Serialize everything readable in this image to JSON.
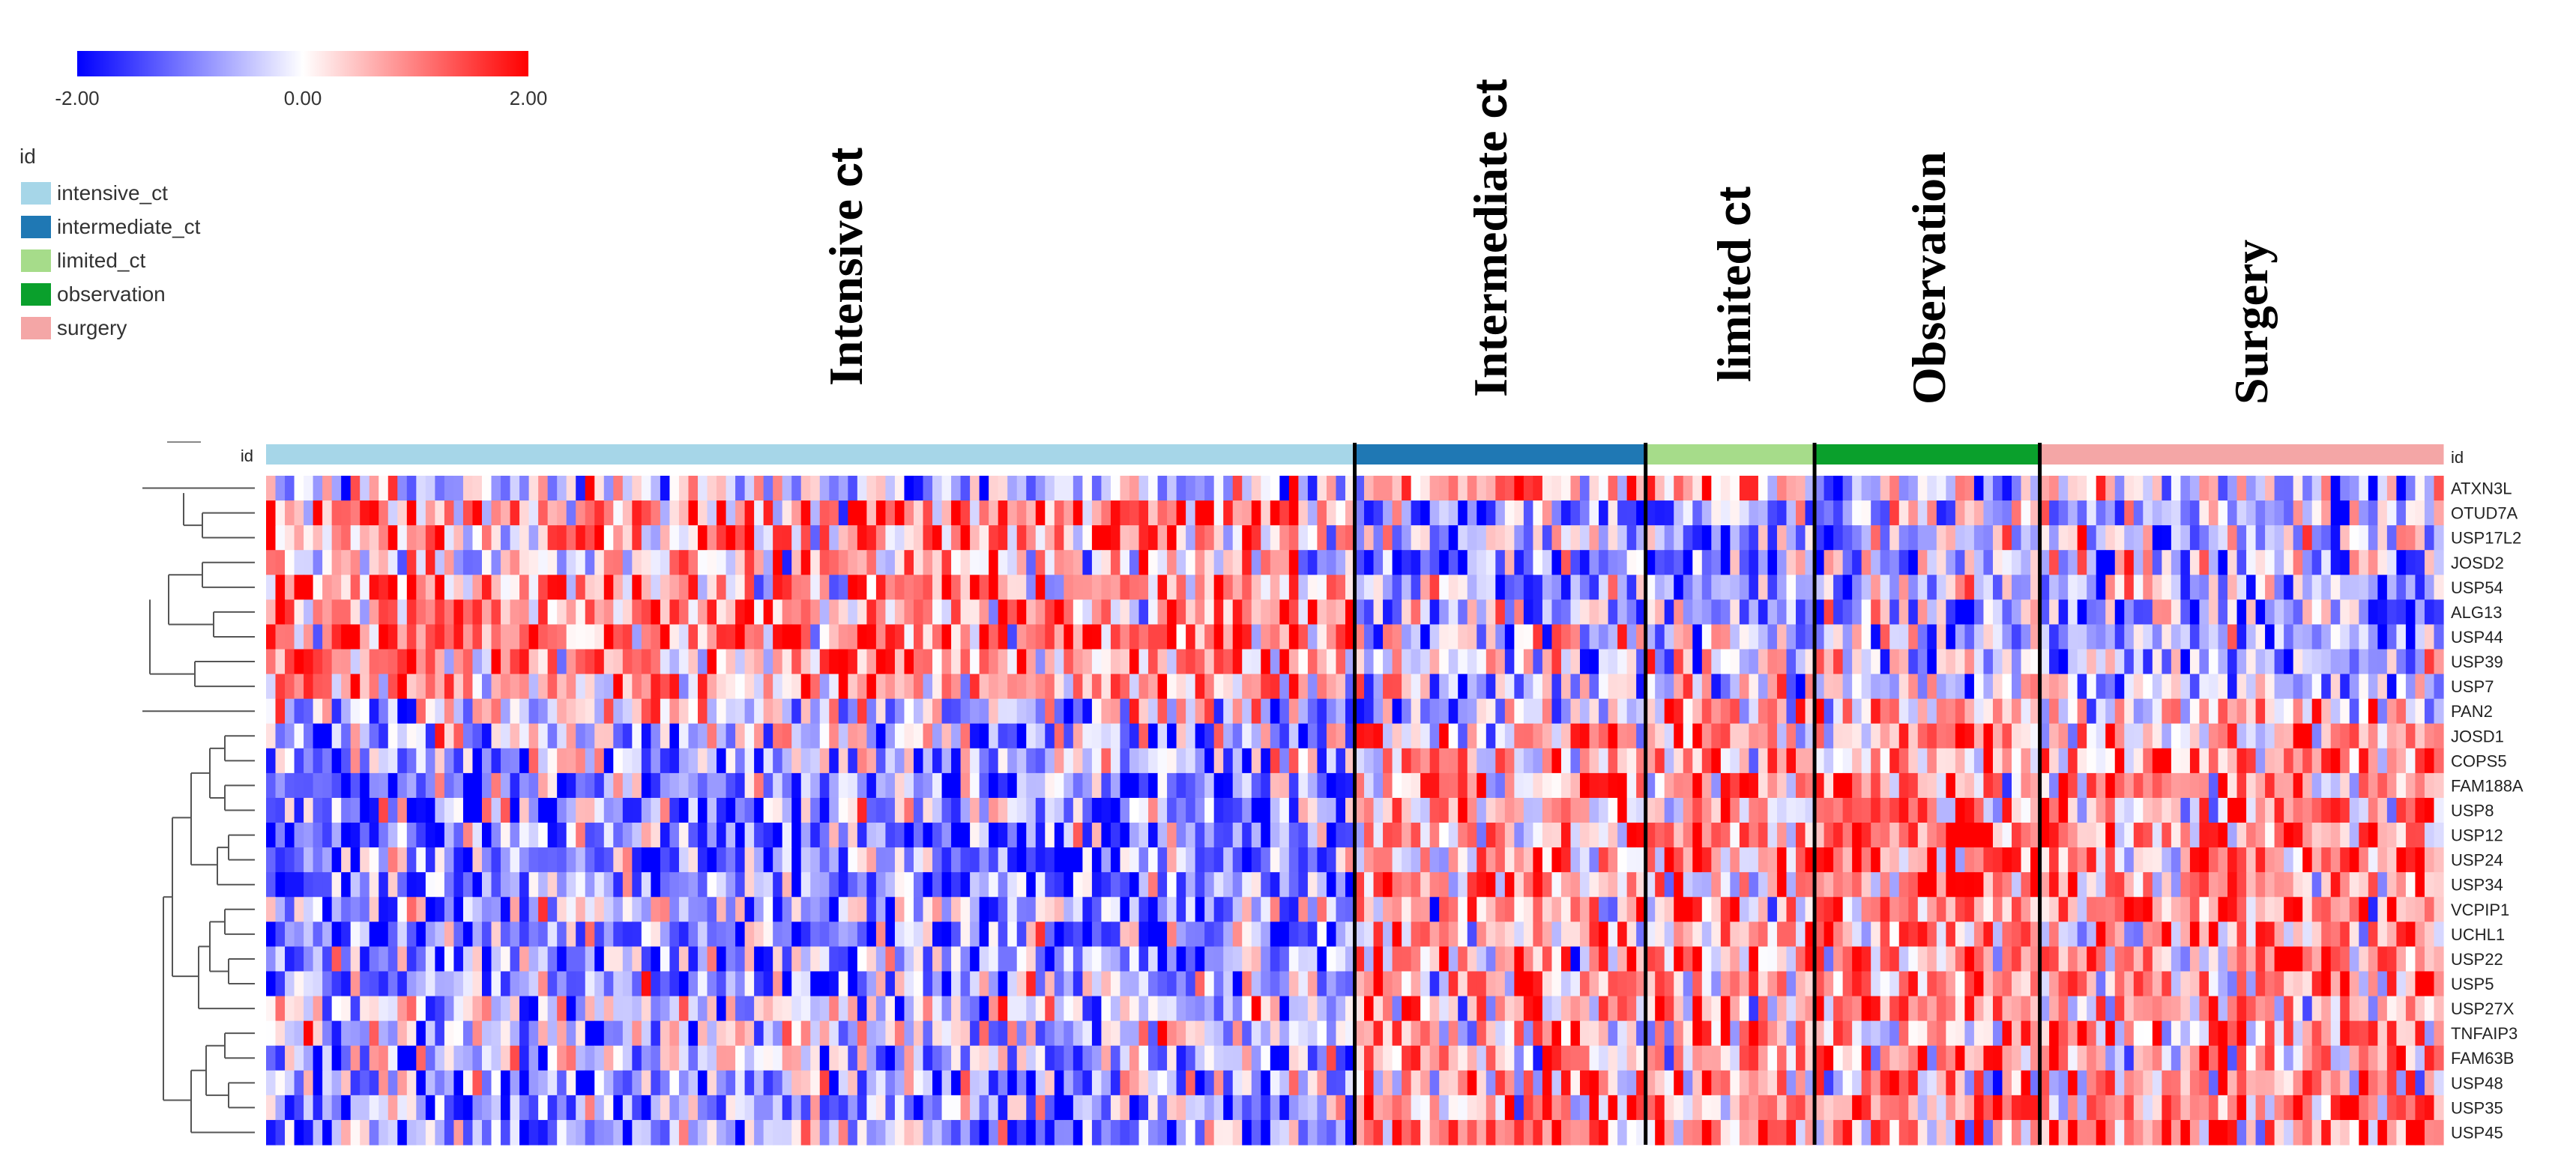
{
  "chart_data": {
    "type": "heatmap",
    "title": "",
    "color_scale": {
      "min_label": "-2.00",
      "mid_label": "0.00",
      "max_label": "2.00",
      "min": -2,
      "mid": 0,
      "max": 2,
      "colors": [
        "#0000ff",
        "#ffffff",
        "#ff0000"
      ]
    },
    "legend": {
      "title": "id",
      "items": [
        {
          "label": "intensive_ct",
          "color": "#a6d6e8"
        },
        {
          "label": "intermediate_ct",
          "color": "#1f78b4"
        },
        {
          "label": "limited_ct",
          "color": "#a6dc8a"
        },
        {
          "label": "observation",
          "color": "#0aa02c"
        },
        {
          "label": "surgery",
          "color": "#f4a6a6"
        }
      ]
    },
    "annotation_track_label": "id",
    "group_titles": [
      {
        "label": "Intensive",
        "suffix": "ct",
        "group": "intensive_ct"
      },
      {
        "label": "Intermediate",
        "suffix": "ct",
        "group": "intermediate_ct"
      },
      {
        "label": "limited",
        "suffix": "ct",
        "group": "limited_ct"
      },
      {
        "label": "Observation",
        "suffix": "",
        "group": "observation"
      },
      {
        "label": "Surgery",
        "suffix": "",
        "group": "surgery"
      }
    ],
    "groups": [
      {
        "name": "intensive_ct",
        "sample_count": 116
      },
      {
        "name": "intermediate_ct",
        "sample_count": 31
      },
      {
        "name": "limited_ct",
        "sample_count": 18
      },
      {
        "name": "observation",
        "sample_count": 24
      },
      {
        "name": "surgery",
        "sample_count": 43
      }
    ],
    "genes": [
      "ATXN3L",
      "OTUD7A",
      "USP17L2",
      "JOSD2",
      "USP54",
      "ALG13",
      "USP44",
      "USP39",
      "USP7",
      "PAN2",
      "JOSD1",
      "COPS5",
      "FAM188A",
      "USP8",
      "USP12",
      "USP24",
      "USP34",
      "VCPIP1",
      "UCHL1",
      "USP22",
      "USP5",
      "USP27X",
      "TNFAIP3",
      "FAM63B",
      "USP48",
      "USP35",
      "USP45"
    ],
    "row_bias": [
      [
        -0.2,
        0.5,
        0.4,
        -0.3,
        -0.2
      ],
      [
        0.5,
        -0.4,
        -0.3,
        -0.3,
        -0.3
      ],
      [
        0.5,
        -0.2,
        -0.3,
        -0.3,
        -0.3
      ],
      [
        0.3,
        -0.6,
        -0.6,
        -0.4,
        -0.3
      ],
      [
        0.5,
        -0.3,
        -0.3,
        -0.4,
        -0.4
      ],
      [
        0.5,
        -0.4,
        -0.3,
        -0.4,
        -0.5
      ],
      [
        0.7,
        -0.2,
        -0.4,
        -0.4,
        -0.4
      ],
      [
        0.5,
        -0.2,
        0.0,
        -0.4,
        -0.4
      ],
      [
        0.4,
        -0.2,
        -0.2,
        -0.3,
        -0.3
      ],
      [
        -0.1,
        -0.3,
        0.2,
        0.1,
        0.1
      ],
      [
        -0.3,
        0.2,
        0.4,
        0.5,
        0.4
      ],
      [
        -0.4,
        0.3,
        0.5,
        0.5,
        0.5
      ],
      [
        -0.6,
        0.4,
        0.4,
        0.5,
        0.5
      ],
      [
        -0.5,
        0.4,
        0.5,
        0.6,
        0.5
      ],
      [
        -0.6,
        0.4,
        0.6,
        0.7,
        0.6
      ],
      [
        -0.6,
        0.5,
        0.6,
        0.8,
        0.6
      ],
      [
        -0.5,
        0.4,
        0.5,
        0.6,
        0.5
      ],
      [
        -0.4,
        0.3,
        0.4,
        0.5,
        0.6
      ],
      [
        -0.6,
        0.3,
        0.5,
        0.5,
        0.5
      ],
      [
        -0.5,
        0.4,
        0.5,
        0.5,
        0.5
      ],
      [
        -0.4,
        0.4,
        0.4,
        0.4,
        0.5
      ],
      [
        -0.3,
        0.3,
        0.3,
        0.4,
        0.4
      ],
      [
        -0.2,
        0.4,
        0.4,
        0.4,
        0.5
      ],
      [
        -0.4,
        0.4,
        0.4,
        0.5,
        0.4
      ],
      [
        -0.4,
        0.3,
        0.4,
        0.4,
        0.5
      ],
      [
        -0.5,
        0.5,
        0.4,
        0.5,
        0.5
      ],
      [
        -0.5,
        0.5,
        0.5,
        0.4,
        0.6
      ]
    ],
    "values_note": "cell values are z-scores (-2 to 2); the 27 x 232 matrix is not printed in the image, so cells are drawn as a per-gene/per-group mean plus seeded variation"
  }
}
